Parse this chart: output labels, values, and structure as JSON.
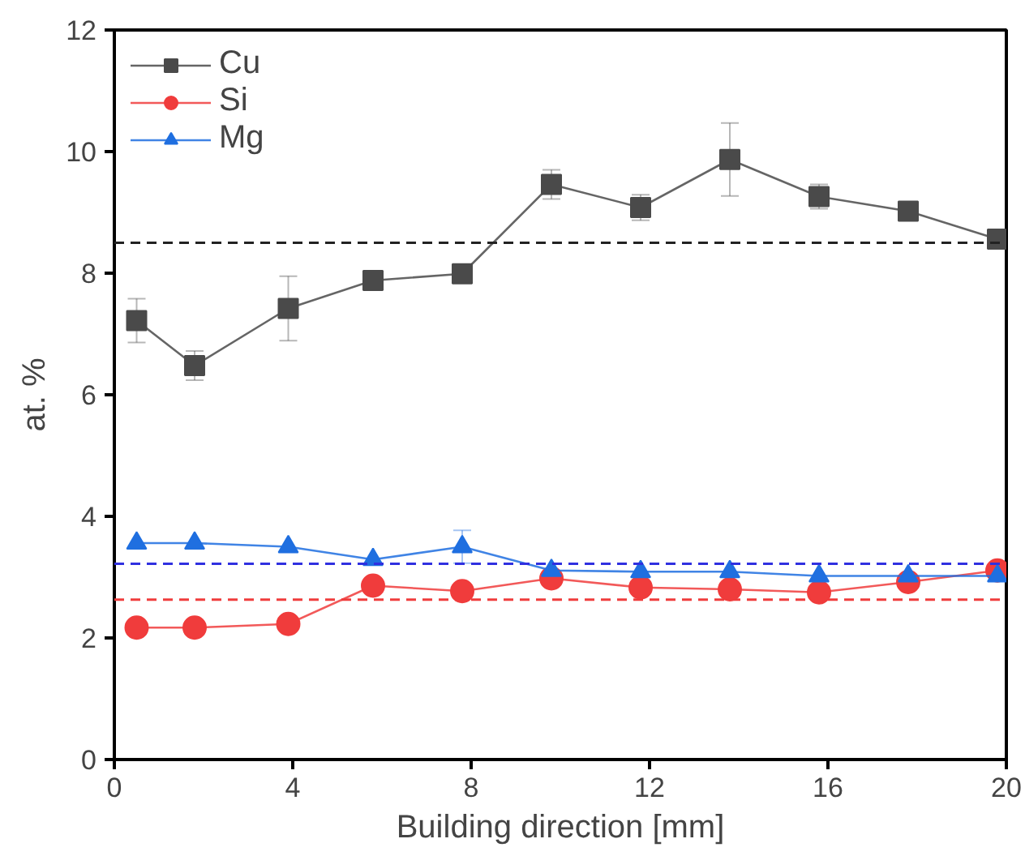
{
  "chart_data": {
    "type": "line",
    "xlabel": "Building direction [mm]",
    "ylabel": "at. %",
    "x": [
      0.5,
      1.8,
      3.9,
      5.8,
      7.8,
      9.8,
      11.8,
      13.8,
      15.8,
      17.8,
      19.8
    ],
    "xlim": [
      0,
      20
    ],
    "xticks": [
      0,
      4,
      8,
      12,
      16,
      20
    ],
    "ylim": [
      0,
      12
    ],
    "yticks": [
      0,
      2,
      4,
      6,
      8,
      10,
      12
    ],
    "line_style": "solid",
    "legend": "top left",
    "grid": false,
    "series": [
      {
        "name": "Cu",
        "color": "#4a4a4a",
        "marker": "square",
        "values": [
          7.22,
          6.48,
          7.42,
          7.88,
          7.99,
          9.46,
          9.08,
          9.87,
          9.26,
          9.02,
          8.56
        ],
        "errors": [
          0.36,
          0.24,
          0.53,
          null,
          null,
          0.24,
          0.21,
          0.6,
          0.2,
          null,
          null
        ]
      },
      {
        "name": "Si",
        "color": "#f03c3c",
        "marker": "circle",
        "values": [
          2.17,
          2.17,
          2.23,
          2.86,
          2.77,
          2.98,
          2.83,
          2.8,
          2.75,
          2.92,
          3.11
        ],
        "errors": [
          null,
          null,
          0.08,
          null,
          null,
          null,
          null,
          null,
          0.08,
          0.08,
          null
        ]
      },
      {
        "name": "Mg",
        "color": "#1f6fe0",
        "marker": "triangle",
        "values": [
          3.56,
          3.56,
          3.5,
          3.29,
          3.5,
          3.11,
          3.09,
          3.09,
          3.02,
          3.02,
          3.02
        ],
        "errors": [
          null,
          null,
          null,
          null,
          0.27,
          null,
          null,
          null,
          null,
          null,
          null
        ]
      }
    ],
    "ref_lines": [
      {
        "axis": "y",
        "value": 8.5,
        "color": "#222222",
        "line_style": "dashed"
      },
      {
        "axis": "y",
        "value": 3.22,
        "color": "#3030e0",
        "line_style": "dashed"
      },
      {
        "axis": "y",
        "value": 2.63,
        "color": "#f03c3c",
        "line_style": "dashed"
      }
    ]
  }
}
